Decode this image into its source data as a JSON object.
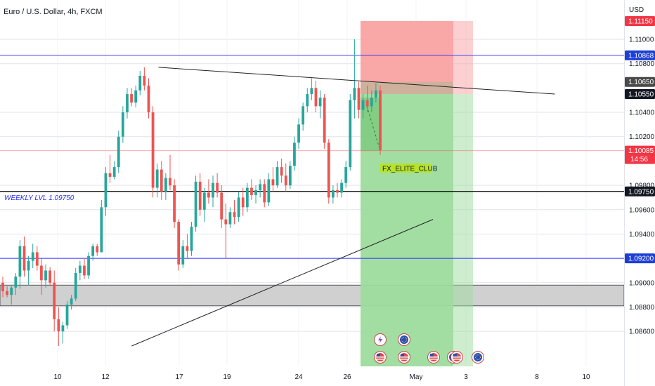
{
  "header": {
    "symbol_title": "Euro / U.S. Dollar, 4h, FXCM",
    "currency_label": "USD"
  },
  "annotations": {
    "weekly_level_text": "WEEKLY LVL 1.09750",
    "watermark_tag": "FX_ELITE_CLUB",
    "countdown": "14:56"
  },
  "colors": {
    "bull": "#26a69a",
    "bear": "#ef5350",
    "grid_line": "#e0e3eb",
    "level_blue": "#2a2eff",
    "level_black": "#000000",
    "stop_zone": "#f9a2a2",
    "target_zone": "#9ddb9d",
    "entry_zone": "#c9b29c",
    "current_price_line": "#ef5350",
    "tag_bg": "#b6e32b",
    "label_red": "#f23645",
    "label_dark": "#131722",
    "label_gray": "#4a4a4a",
    "label_blue": "#1c3fd6",
    "demand_zone": "#c8c8c8"
  },
  "chart_data": {
    "type": "candlestick",
    "symbol": "Euro / U.S. Dollar",
    "timeframe": "4h",
    "source": "FXCM",
    "y_axis_label": "USD",
    "ylim": [
      1.0848,
      1.1123
    ],
    "y_ticks": [
      "1.08600",
      "1.08800",
      "1.09000",
      "1.09400",
      "1.09600",
      "1.09800",
      "1.10200",
      "1.10400",
      "1.10800",
      "1.11000"
    ],
    "x_ticks": [
      "10",
      "12",
      "17",
      "19",
      "24",
      "26",
      "May",
      "3",
      "8",
      "10"
    ],
    "price_labels": [
      {
        "text": "1.11150",
        "value": 1.1115,
        "style": "red"
      },
      {
        "text": "1.10868",
        "value": 1.10868,
        "style": "blue"
      },
      {
        "text": "1.10650",
        "value": 1.1065,
        "style": "gray"
      },
      {
        "text": "1.10550",
        "value": 1.1055,
        "style": "dark"
      },
      {
        "text": "1.10085",
        "value": 1.10085,
        "style": "red"
      },
      {
        "text": "1.09750",
        "value": 1.0975,
        "style": "dark"
      },
      {
        "text": "1.09200",
        "value": 1.092,
        "style": "blue"
      }
    ],
    "horizontal_levels": [
      {
        "value": 1.10868,
        "color": "blue"
      },
      {
        "value": 1.0975,
        "color": "black"
      },
      {
        "value": 1.092,
        "color": "blue"
      }
    ],
    "demand_zone": [
      1.0881,
      1.0898
    ],
    "position": {
      "type": "short",
      "entry": 1.1055,
      "stop_loss": 1.1115,
      "take_profit": 1.0848
    },
    "trendlines": [
      {
        "from": [
          0.242,
          1.1077
        ],
        "to": [
          0.847,
          1.1055
        ]
      },
      {
        "from": [
          0.201,
          1.0848
        ],
        "to": [
          0.661,
          1.0952
        ]
      }
    ],
    "candles": [
      [
        1.09,
        1.0905,
        1.0888,
        1.0893
      ],
      [
        1.0893,
        1.0897,
        1.0888,
        1.089
      ],
      [
        1.089,
        1.0898,
        1.0882,
        1.0896
      ],
      [
        1.0896,
        1.0908,
        1.089,
        1.0905
      ],
      [
        1.0905,
        1.0935,
        1.0895,
        1.093
      ],
      [
        1.093,
        1.0938,
        1.0905,
        1.091
      ],
      [
        1.091,
        1.0922,
        1.0898,
        1.0918
      ],
      [
        1.0918,
        1.0932,
        1.0912,
        1.0925
      ],
      [
        1.0925,
        1.093,
        1.091,
        1.0914
      ],
      [
        1.0914,
        1.092,
        1.089,
        1.0902
      ],
      [
        1.0902,
        1.0915,
        1.0896,
        1.091
      ],
      [
        1.091,
        1.0913,
        1.0897,
        1.09
      ],
      [
        1.09,
        1.091,
        1.086,
        1.087
      ],
      [
        1.087,
        1.088,
        1.0848,
        1.086
      ],
      [
        1.086,
        1.0868,
        1.085,
        1.0865
      ],
      [
        1.0865,
        1.0885,
        1.0862,
        1.0882
      ],
      [
        1.0882,
        1.089,
        1.0878,
        1.0887
      ],
      [
        1.0887,
        1.0912,
        1.0885,
        1.0908
      ],
      [
        1.0908,
        1.0918,
        1.0902,
        1.0914
      ],
      [
        1.0914,
        1.092,
        1.0903,
        1.0906
      ],
      [
        1.0906,
        1.0925,
        1.0903,
        1.0922
      ],
      [
        1.0922,
        1.0932,
        1.0918,
        1.093
      ],
      [
        1.093,
        1.0932,
        1.0922,
        1.0925
      ],
      [
        1.0925,
        1.0968,
        1.0925,
        1.0962
      ],
      [
        1.0962,
        1.0995,
        1.0955,
        1.099
      ],
      [
        1.099,
        1.1005,
        1.0982,
        1.0987
      ],
      [
        1.0987,
        1.1,
        1.0985,
        1.0995
      ],
      [
        1.0995,
        1.1025,
        1.099,
        1.102
      ],
      [
        1.102,
        1.1045,
        1.1015,
        1.104
      ],
      [
        1.104,
        1.106,
        1.1035,
        1.1055
      ],
      [
        1.1055,
        1.106,
        1.1045,
        1.1048
      ],
      [
        1.1048,
        1.1062,
        1.1044,
        1.1058
      ],
      [
        1.1058,
        1.1074,
        1.1054,
        1.107
      ],
      [
        1.107,
        1.1077,
        1.1058,
        1.1062
      ],
      [
        1.1062,
        1.1068,
        1.1035,
        1.104
      ],
      [
        1.104,
        1.1045,
        1.097,
        1.0978
      ],
      [
        1.0978,
        1.0998,
        1.097,
        1.0993
      ],
      [
        1.0993,
        1.1,
        1.0968,
        1.0975
      ],
      [
        1.0975,
        1.099,
        1.0968,
        1.0986
      ],
      [
        1.0986,
        1.1005,
        1.0976,
        1.098
      ],
      [
        1.098,
        1.0985,
        1.0945,
        1.095
      ],
      [
        1.095,
        1.0952,
        1.091,
        1.0915
      ],
      [
        1.0915,
        1.0935,
        1.0912,
        1.093
      ],
      [
        1.093,
        1.094,
        1.092,
        1.0926
      ],
      [
        1.0926,
        1.095,
        1.0922,
        1.0946
      ],
      [
        1.0946,
        1.0988,
        1.0942,
        1.0983
      ],
      [
        1.0983,
        1.099,
        1.0955,
        1.096
      ],
      [
        1.096,
        1.0978,
        1.095,
        1.0974
      ],
      [
        1.0974,
        1.0985,
        1.0965,
        1.097
      ],
      [
        1.097,
        1.0988,
        1.0962,
        1.0982
      ],
      [
        1.0982,
        1.099,
        1.097,
        1.0974
      ],
      [
        1.0974,
        1.098,
        1.0945,
        1.0952
      ],
      [
        1.0952,
        1.0965,
        1.092,
        1.0948
      ],
      [
        1.0948,
        1.0962,
        1.0945,
        1.0958
      ],
      [
        1.0958,
        1.0968,
        1.0948,
        1.0954
      ],
      [
        1.0954,
        1.0975,
        1.095,
        1.097
      ],
      [
        1.097,
        1.0978,
        1.0955,
        1.0962
      ],
      [
        1.0962,
        1.0982,
        1.0958,
        1.0978
      ],
      [
        1.0978,
        1.0985,
        1.0968,
        1.0972
      ],
      [
        1.0972,
        1.098,
        1.0965,
        1.0976
      ],
      [
        1.0976,
        1.0985,
        1.097,
        1.0981
      ],
      [
        1.0981,
        1.0985,
        1.0962,
        1.0966
      ],
      [
        1.0966,
        1.099,
        1.0963,
        1.0985
      ],
      [
        1.0985,
        1.0995,
        1.0975,
        1.098
      ],
      [
        1.098,
        1.1,
        1.0978,
        1.0995
      ],
      [
        1.0995,
        1.1002,
        1.0982,
        1.0988
      ],
      [
        1.0988,
        1.0998,
        1.0975,
        1.098
      ],
      [
        1.098,
        1.1,
        1.0977,
        1.0996
      ],
      [
        1.0996,
        1.102,
        1.0992,
        1.1015
      ],
      [
        1.1015,
        1.1035,
        1.101,
        1.103
      ],
      [
        1.103,
        1.1048,
        1.1025,
        1.1045
      ],
      [
        1.1045,
        1.106,
        1.104,
        1.1055
      ],
      [
        1.1055,
        1.1068,
        1.105,
        1.106
      ],
      [
        1.106,
        1.1066,
        1.104,
        1.1045
      ],
      [
        1.1045,
        1.1058,
        1.1035,
        1.1052
      ],
      [
        1.1052,
        1.1055,
        1.101,
        1.1015
      ],
      [
        1.1015,
        1.1018,
        1.0965,
        1.097
      ],
      [
        1.097,
        1.098,
        1.0965,
        1.0976
      ],
      [
        1.0976,
        1.0982,
        1.097,
        1.0974
      ],
      [
        1.0974,
        1.0985,
        1.097,
        1.0982
      ],
      [
        1.0982,
        1.1,
        1.0978,
        1.0995
      ],
      [
        1.0995,
        1.1055,
        1.0992,
        1.105
      ],
      [
        1.105,
        1.11,
        1.1035,
        1.106
      ],
      [
        1.106,
        1.1065,
        1.1035,
        1.1042
      ],
      [
        1.1042,
        1.1055,
        1.1035,
        1.105
      ],
      [
        1.105,
        1.1062,
        1.104,
        1.1045
      ],
      [
        1.1045,
        1.1058,
        1.104,
        1.1052
      ],
      [
        1.1052,
        1.1064,
        1.1048,
        1.1058
      ],
      [
        1.1058,
        1.1062,
        1.1005,
        1.1009
      ]
    ]
  }
}
